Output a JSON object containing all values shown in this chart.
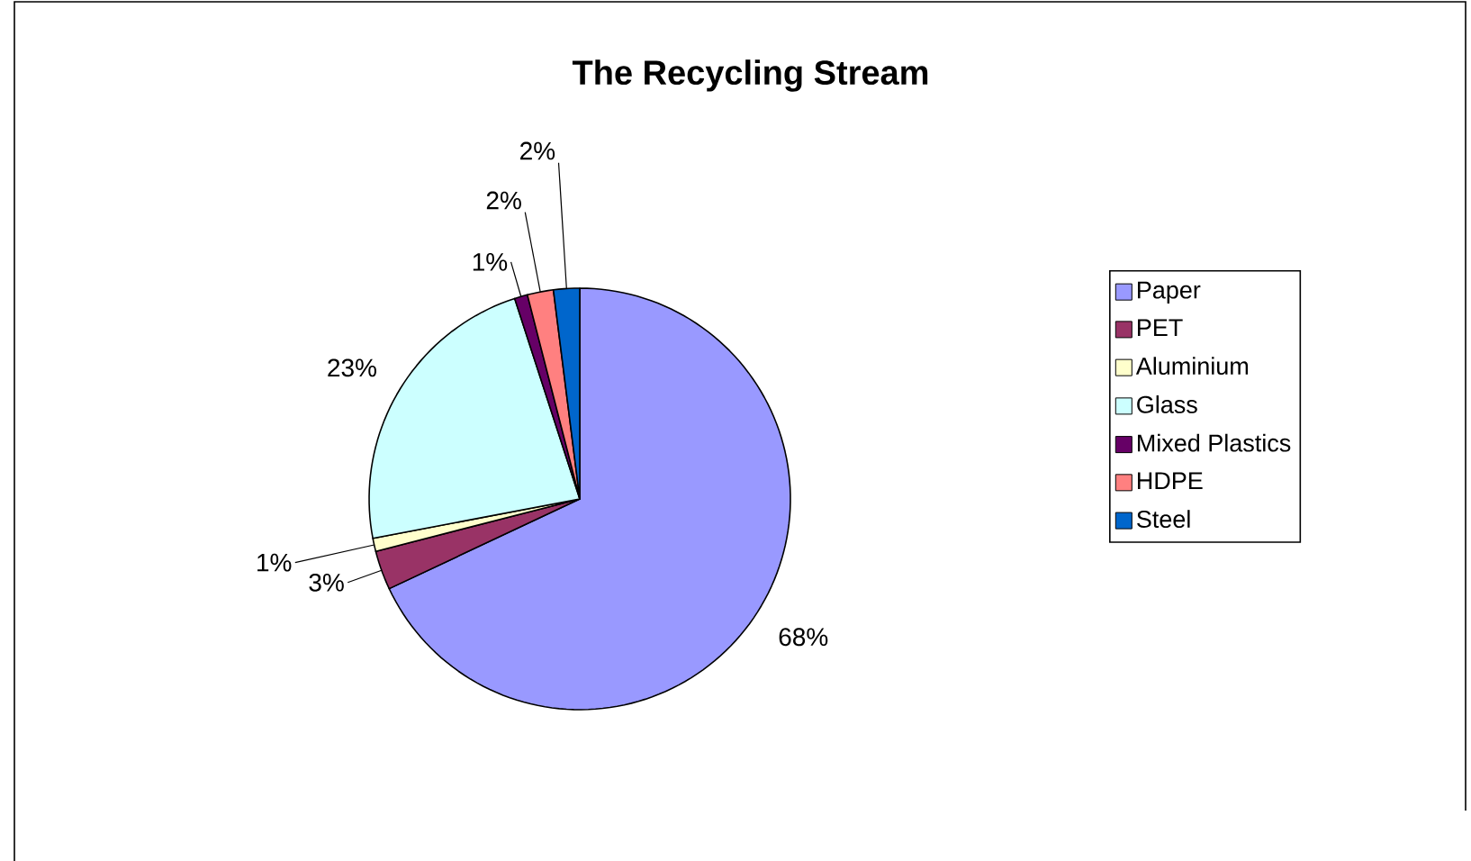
{
  "chart_data": {
    "type": "pie",
    "title": "The Recycling Stream",
    "categories": [
      "Paper",
      "PET",
      "Aluminium",
      "Glass",
      "Mixed Plastics",
      "HDPE",
      "Steel"
    ],
    "values": [
      68,
      3,
      1,
      23,
      1,
      2,
      2
    ],
    "value_labels": [
      "68%",
      "3%",
      "1%",
      "23%",
      "1%",
      "2%",
      "2%"
    ],
    "colors": [
      "#9999ff",
      "#993366",
      "#ffffcc",
      "#ccffff",
      "#660066",
      "#ff8080",
      "#0066cc"
    ],
    "legend": "right"
  }
}
